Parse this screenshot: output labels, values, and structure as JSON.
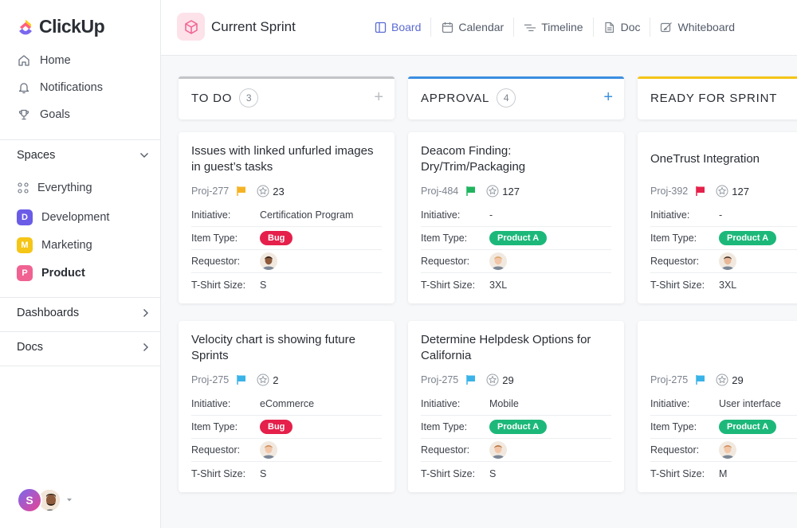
{
  "app": {
    "name": "ClickUp"
  },
  "sidebar": {
    "nav": [
      {
        "label": "Home",
        "icon": "home-icon"
      },
      {
        "label": "Notifications",
        "icon": "bell-icon"
      },
      {
        "label": "Goals",
        "icon": "trophy-icon"
      }
    ],
    "spaces_title": "Spaces",
    "everything_label": "Everything",
    "spaces": [
      {
        "letter": "D",
        "label": "Development",
        "color": "#6b5ce7"
      },
      {
        "letter": "M",
        "label": "Marketing",
        "color": "#f5c518"
      },
      {
        "letter": "P",
        "label": "Product",
        "color": "#f06292"
      }
    ],
    "dashboards_label": "Dashboards",
    "docs_label": "Docs",
    "user_initial": "S"
  },
  "header": {
    "title": "Current Sprint",
    "tabs": [
      {
        "label": "Board",
        "icon": "board-icon"
      },
      {
        "label": "Calendar",
        "icon": "calendar-icon"
      },
      {
        "label": "Timeline",
        "icon": "timeline-icon"
      },
      {
        "label": "Doc",
        "icon": "doc-icon"
      },
      {
        "label": "Whiteboard",
        "icon": "whiteboard-icon"
      }
    ]
  },
  "labels": {
    "initiative": "Initiative:",
    "item_type": "Item Type:",
    "requestor": "Requestor:",
    "tshirt": "T-Shirt Size:"
  },
  "columns": [
    {
      "title": "TO DO",
      "count": "3",
      "color": "#c2c4c8",
      "cards": [
        {
          "title": "Issues with linked unfurled images in guest’s tasks",
          "id": "Proj-277",
          "flag_color": "#f5b324",
          "points": "23",
          "initiative": "Certification Program",
          "item_type": "Bug",
          "item_color": "#e5204a",
          "size": "S"
        },
        {
          "title": "Velocity chart is showing future Sprints",
          "id": "Proj-275",
          "flag_color": "#3ab3e8",
          "points": "2",
          "initiative": "eCommerce",
          "item_type": "Bug",
          "item_color": "#e5204a",
          "size": "S"
        }
      ]
    },
    {
      "title": "APPROVAL",
      "count": "4",
      "color": "#3b8fe0",
      "cards": [
        {
          "title": "Deacom Finding: Dry/Trim/Packaging",
          "id": "Proj-484",
          "flag_color": "#1fb55e",
          "points": "127",
          "initiative": "-",
          "item_type": "Product A",
          "item_color": "#1cb87a",
          "size": "3XL"
        },
        {
          "title": "Determine Helpdesk Options for California",
          "id": "Proj-275",
          "flag_color": "#3ab3e8",
          "points": "29",
          "initiative": "Mobile",
          "item_type": "Product A",
          "item_color": "#1cb87a",
          "size": "S"
        }
      ]
    },
    {
      "title": "READY FOR SPRINT",
      "count": "",
      "color": "#f5c518",
      "cards": [
        {
          "title": "OneTrust Integration",
          "id": "Proj-392",
          "flag_color": "#e5204a",
          "points": "127",
          "initiative": "-",
          "item_type": "Product A",
          "item_color": "#1cb87a",
          "size": "3XL"
        },
        {
          "title": "",
          "id": "Proj-275",
          "flag_color": "#3ab3e8",
          "points": "29",
          "initiative": "User interface",
          "item_type": "Product A",
          "item_color": "#1cb87a",
          "size": "M"
        }
      ]
    }
  ]
}
